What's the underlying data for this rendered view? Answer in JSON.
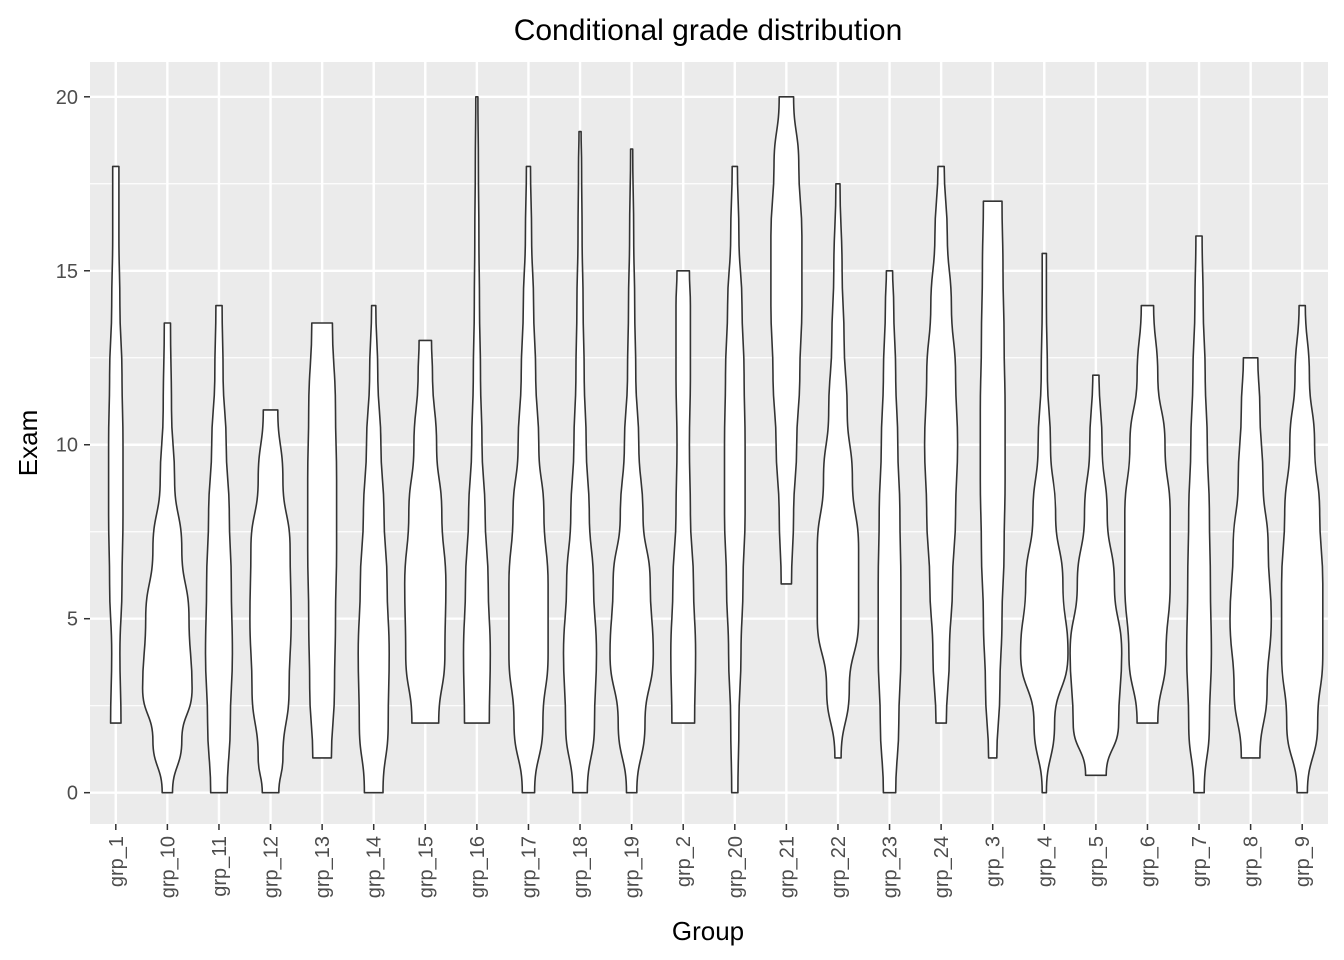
{
  "chart_data": {
    "type": "violin",
    "title": "Conditional grade distribution",
    "xlabel": "Group",
    "ylabel": "Exam",
    "ylim": [
      -0.9,
      21.0
    ],
    "yticks": [
      0,
      5,
      10,
      15,
      20
    ],
    "grid": true,
    "legend": "none",
    "colors": {
      "panel": "#ebebeb",
      "grid": "#ffffff",
      "fill": "#ffffff",
      "outline": "#333333",
      "tick": "#333333"
    },
    "categories": [
      "grp_1",
      "grp_10",
      "grp_11",
      "grp_12",
      "grp_13",
      "grp_14",
      "grp_15",
      "grp_16",
      "grp_17",
      "grp_18",
      "grp_19",
      "grp_2",
      "grp_20",
      "grp_21",
      "grp_22",
      "grp_23",
      "grp_24",
      "grp_3",
      "grp_4",
      "grp_5",
      "grp_6",
      "grp_7",
      "grp_8",
      "grp_9"
    ],
    "violins": [
      {
        "group": "grp_1",
        "min": 2,
        "max": 18,
        "profile": [
          [
            2,
            5
          ],
          [
            4,
            4
          ],
          [
            6,
            6
          ],
          [
            8,
            7
          ],
          [
            10,
            7
          ],
          [
            12,
            6
          ],
          [
            14,
            4
          ],
          [
            16,
            3
          ],
          [
            18,
            3
          ]
        ]
      },
      {
        "group": "grp_10",
        "min": 0,
        "max": 13.5,
        "profile": [
          [
            0,
            5
          ],
          [
            1.5,
            14
          ],
          [
            3,
            24
          ],
          [
            5,
            21
          ],
          [
            7,
            14
          ],
          [
            9,
            7
          ],
          [
            11,
            4
          ],
          [
            13.5,
            3
          ]
        ]
      },
      {
        "group": "grp_11",
        "min": 0,
        "max": 14,
        "profile": [
          [
            0,
            8
          ],
          [
            2,
            11
          ],
          [
            4,
            13
          ],
          [
            6,
            12
          ],
          [
            8,
            10
          ],
          [
            10,
            7
          ],
          [
            12,
            4
          ],
          [
            14,
            3
          ]
        ]
      },
      {
        "group": "grp_12",
        "min": 0,
        "max": 11,
        "profile": [
          [
            0,
            8
          ],
          [
            1,
            12
          ],
          [
            3,
            18
          ],
          [
            5,
            20
          ],
          [
            7,
            19
          ],
          [
            9,
            12
          ],
          [
            11,
            7
          ]
        ]
      },
      {
        "group": "grp_13",
        "min": 1,
        "max": 13.5,
        "profile": [
          [
            1,
            9
          ],
          [
            3,
            12
          ],
          [
            5,
            13
          ],
          [
            7,
            14
          ],
          [
            9,
            14
          ],
          [
            11,
            13
          ],
          [
            13.5,
            10
          ]
        ]
      },
      {
        "group": "grp_14",
        "min": 0,
        "max": 14,
        "profile": [
          [
            0,
            9
          ],
          [
            2,
            14
          ],
          [
            4,
            15
          ],
          [
            6,
            13
          ],
          [
            8,
            10
          ],
          [
            10,
            7
          ],
          [
            12,
            4
          ],
          [
            14,
            2
          ]
        ]
      },
      {
        "group": "grp_15",
        "min": 2,
        "max": 13,
        "profile": [
          [
            2,
            13
          ],
          [
            4,
            19
          ],
          [
            6,
            20
          ],
          [
            8,
            16
          ],
          [
            10,
            11
          ],
          [
            12,
            7
          ],
          [
            13,
            6
          ]
        ]
      },
      {
        "group": "grp_16",
        "min": 2,
        "max": 20,
        "profile": [
          [
            2,
            12
          ],
          [
            4,
            13
          ],
          [
            6,
            11
          ],
          [
            8,
            8
          ],
          [
            10,
            5
          ],
          [
            12,
            3.5
          ],
          [
            14,
            2.5
          ],
          [
            16,
            2
          ],
          [
            18,
            1.5
          ],
          [
            20,
            1
          ]
        ]
      },
      {
        "group": "grp_17",
        "min": 0,
        "max": 18,
        "profile": [
          [
            0,
            6
          ],
          [
            2,
            14
          ],
          [
            4,
            19
          ],
          [
            6,
            19
          ],
          [
            8,
            15
          ],
          [
            10,
            10
          ],
          [
            12,
            7
          ],
          [
            14,
            5
          ],
          [
            16,
            3
          ],
          [
            18,
            2
          ]
        ]
      },
      {
        "group": "grp_18",
        "min": 0,
        "max": 19,
        "profile": [
          [
            0,
            7
          ],
          [
            2,
            14
          ],
          [
            4,
            16
          ],
          [
            6,
            13
          ],
          [
            8,
            9
          ],
          [
            10,
            6
          ],
          [
            12,
            4
          ],
          [
            14,
            3
          ],
          [
            16,
            2
          ],
          [
            18,
            1.5
          ],
          [
            19,
            1
          ]
        ]
      },
      {
        "group": "grp_19",
        "min": 0,
        "max": 18.5,
        "profile": [
          [
            0,
            5
          ],
          [
            2,
            13
          ],
          [
            4,
            21
          ],
          [
            6,
            18
          ],
          [
            8,
            11
          ],
          [
            10,
            7
          ],
          [
            12,
            4
          ],
          [
            14,
            3
          ],
          [
            16,
            2
          ],
          [
            18.5,
            1
          ]
        ]
      },
      {
        "group": "grp_2",
        "min": 2,
        "max": 15,
        "profile": [
          [
            2,
            11
          ],
          [
            4,
            12
          ],
          [
            6,
            10
          ],
          [
            8,
            7
          ],
          [
            10,
            6
          ],
          [
            12,
            7
          ],
          [
            14,
            7
          ],
          [
            15,
            6
          ]
        ]
      },
      {
        "group": "grp_20",
        "min": 0,
        "max": 18,
        "profile": [
          [
            0,
            3
          ],
          [
            2,
            4
          ],
          [
            4,
            6
          ],
          [
            6,
            8
          ],
          [
            8,
            10
          ],
          [
            10,
            10
          ],
          [
            12,
            9
          ],
          [
            14,
            7
          ],
          [
            16,
            4
          ],
          [
            18,
            2.5
          ]
        ]
      },
      {
        "group": "grp_21",
        "min": 6,
        "max": 20,
        "profile": [
          [
            6,
            5
          ],
          [
            8,
            7
          ],
          [
            10,
            10
          ],
          [
            12,
            13
          ],
          [
            14,
            15
          ],
          [
            16,
            15
          ],
          [
            18,
            12
          ],
          [
            20,
            7
          ]
        ]
      },
      {
        "group": "grp_22",
        "min": 1,
        "max": 17.5,
        "profile": [
          [
            1,
            3
          ],
          [
            3,
            11
          ],
          [
            5,
            20
          ],
          [
            7,
            20
          ],
          [
            9,
            14
          ],
          [
            11,
            9
          ],
          [
            13,
            6
          ],
          [
            15,
            4
          ],
          [
            17.5,
            2
          ]
        ]
      },
      {
        "group": "grp_23",
        "min": 0,
        "max": 15,
        "profile": [
          [
            0,
            6
          ],
          [
            2,
            9
          ],
          [
            4,
            11
          ],
          [
            6,
            11
          ],
          [
            8,
            10
          ],
          [
            10,
            8
          ],
          [
            12,
            6
          ],
          [
            14,
            4
          ],
          [
            15,
            3
          ]
        ]
      },
      {
        "group": "grp_24",
        "min": 2,
        "max": 18,
        "profile": [
          [
            2,
            5
          ],
          [
            4,
            8
          ],
          [
            6,
            11
          ],
          [
            8,
            14
          ],
          [
            10,
            16
          ],
          [
            12,
            14
          ],
          [
            14,
            10
          ],
          [
            16,
            6
          ],
          [
            18,
            3
          ]
        ]
      },
      {
        "group": "grp_3",
        "min": 1,
        "max": 17,
        "profile": [
          [
            1,
            4
          ],
          [
            3,
            7
          ],
          [
            5,
            9
          ],
          [
            7,
            11
          ],
          [
            9,
            12
          ],
          [
            11,
            12
          ],
          [
            13,
            11
          ],
          [
            15,
            10
          ],
          [
            17,
            9
          ]
        ]
      },
      {
        "group": "grp_4",
        "min": 0,
        "max": 15.5,
        "profile": [
          [
            0,
            2
          ],
          [
            2,
            10
          ],
          [
            4,
            23
          ],
          [
            6,
            18
          ],
          [
            8,
            11
          ],
          [
            10,
            6
          ],
          [
            12,
            3
          ],
          [
            14,
            2
          ],
          [
            15.5,
            2
          ]
        ]
      },
      {
        "group": "grp_5",
        "min": 0.5,
        "max": 12,
        "profile": [
          [
            0.5,
            10
          ],
          [
            2,
            22
          ],
          [
            4,
            25
          ],
          [
            6,
            18
          ],
          [
            8,
            11
          ],
          [
            10,
            6
          ],
          [
            12,
            3
          ]
        ]
      },
      {
        "group": "grp_6",
        "min": 2,
        "max": 14,
        "profile": [
          [
            2,
            10
          ],
          [
            4,
            18
          ],
          [
            6,
            22
          ],
          [
            8,
            22
          ],
          [
            10,
            17
          ],
          [
            12,
            10
          ],
          [
            14,
            6
          ]
        ]
      },
      {
        "group": "grp_7",
        "min": 0,
        "max": 16,
        "profile": [
          [
            0,
            5
          ],
          [
            2,
            10
          ],
          [
            4,
            12
          ],
          [
            6,
            11
          ],
          [
            8,
            10
          ],
          [
            10,
            8
          ],
          [
            12,
            6
          ],
          [
            14,
            4
          ],
          [
            16,
            3
          ]
        ]
      },
      {
        "group": "grp_8",
        "min": 1,
        "max": 12.5,
        "profile": [
          [
            1,
            9
          ],
          [
            3,
            16
          ],
          [
            5,
            20
          ],
          [
            7,
            17
          ],
          [
            9,
            12
          ],
          [
            11,
            9
          ],
          [
            12.5,
            7
          ]
        ]
      },
      {
        "group": "grp_9",
        "min": 0,
        "max": 14,
        "profile": [
          [
            0,
            5
          ],
          [
            2,
            15
          ],
          [
            4,
            20
          ],
          [
            6,
            20
          ],
          [
            8,
            17
          ],
          [
            10,
            12
          ],
          [
            12,
            7
          ],
          [
            14,
            3
          ]
        ]
      }
    ]
  }
}
